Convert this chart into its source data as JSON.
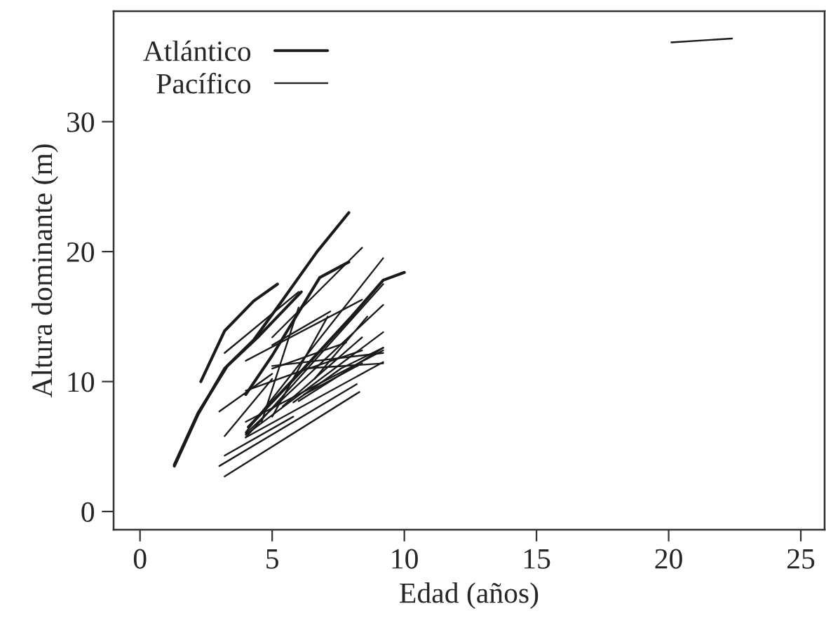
{
  "chart_data": {
    "type": "line",
    "xlabel": "Edad (años)",
    "ylabel": "Altura dominante (m)",
    "xlim": [
      -1.0,
      25.9
    ],
    "ylim": [
      -1.4,
      38.5
    ],
    "xticks": [
      0,
      5,
      10,
      15,
      20,
      25
    ],
    "yticks": [
      0,
      10,
      20,
      30
    ],
    "grid": false,
    "legend": "top left",
    "marker": "none",
    "line_style": "solid",
    "series": [
      {
        "name": "Atlántico",
        "color": "#1a1a1a",
        "x": [
          1.3,
          2.2,
          3.2,
          4.3,
          5.3,
          6.7,
          7.9
        ],
        "values": [
          3.5,
          7.5,
          11.0,
          13.2,
          16.0,
          20.0,
          23.0
        ]
      },
      {
        "color": "#1a1a1a",
        "x": [
          2.3,
          3.2,
          4.3,
          5.2
        ],
        "values": [
          10.0,
          13.9,
          16.2,
          17.5
        ]
      },
      {
        "color": "#1a1a1a",
        "x": [
          1.3,
          2.2,
          3.3,
          4.5,
          6.1
        ],
        "values": [
          3.6,
          7.6,
          11.2,
          13.5,
          16.9
        ]
      },
      {
        "color": "#1a1a1a",
        "x": [
          4.0,
          5.0,
          6.8,
          7.9
        ],
        "values": [
          9.0,
          12.0,
          18.0,
          19.2
        ]
      },
      {
        "color": "#1a1a1a",
        "x": [
          4.1,
          6.1,
          8.0,
          9.2,
          10.0
        ],
        "values": [
          6.5,
          10.8,
          15.0,
          17.8,
          18.4
        ]
      },
      {
        "name": "Pacífico",
        "color": "#1a1a1a",
        "x": [
          20.1,
          22.4
        ],
        "values": [
          36.1,
          36.4
        ]
      },
      {
        "color": "#1a1a1a",
        "x": [
          3.0,
          5.0
        ],
        "values": [
          7.7,
          10.6
        ]
      },
      {
        "color": "#1a1a1a",
        "x": [
          3.2,
          6.0
        ],
        "values": [
          12.2,
          16.9
        ]
      },
      {
        "color": "#1a1a1a",
        "x": [
          4.0,
          8.4
        ],
        "values": [
          11.6,
          16.3
        ]
      },
      {
        "color": "#1a1a1a",
        "x": [
          5.0,
          7.2
        ],
        "values": [
          12.8,
          15.4
        ]
      },
      {
        "color": "#1a1a1a",
        "x": [
          5.0,
          8.4
        ],
        "values": [
          13.4,
          20.3
        ]
      },
      {
        "color": "#1a1a1a",
        "x": [
          4.0,
          9.2
        ],
        "values": [
          6.1,
          19.5
        ]
      },
      {
        "color": "#1a1a1a",
        "x": [
          4.0,
          9.2
        ],
        "values": [
          5.7,
          17.5
        ]
      },
      {
        "color": "#1a1a1a",
        "x": [
          4.0,
          9.2
        ],
        "values": [
          6.0,
          15.9
        ]
      },
      {
        "color": "#1a1a1a",
        "x": [
          4.0,
          9.2
        ],
        "values": [
          5.9,
          13.8
        ]
      },
      {
        "color": "#1a1a1a",
        "x": [
          4.0,
          9.2
        ],
        "values": [
          6.9,
          12.4
        ]
      },
      {
        "color": "#1a1a1a",
        "x": [
          4.0,
          9.2
        ],
        "values": [
          5.7,
          11.5
        ]
      },
      {
        "color": "#1a1a1a",
        "x": [
          3.0,
          8.2
        ],
        "values": [
          3.5,
          9.8
        ]
      },
      {
        "color": "#1a1a1a",
        "x": [
          3.2,
          8.3
        ],
        "values": [
          2.7,
          9.2
        ]
      },
      {
        "color": "#1a1a1a",
        "x": [
          3.2,
          5.8
        ],
        "values": [
          4.3,
          7.3
        ]
      },
      {
        "color": "#1a1a1a",
        "x": [
          3.2,
          5.0
        ],
        "values": [
          5.8,
          10.2
        ]
      },
      {
        "color": "#1a1a1a",
        "x": [
          4.0,
          5.8,
          8.4
        ],
        "values": [
          9.3,
          10.6,
          12.4
        ]
      },
      {
        "color": "#1a1a1a",
        "x": [
          4.6,
          6.0
        ],
        "values": [
          6.9,
          15.7
        ]
      },
      {
        "color": "#1a1a1a",
        "x": [
          5.0,
          7.1
        ],
        "values": [
          7.3,
          15.0
        ]
      },
      {
        "color": "#1a1a1a",
        "x": [
          6.0,
          9.2
        ],
        "values": [
          8.5,
          12.6
        ]
      },
      {
        "color": "#1a1a1a",
        "x": [
          6.2,
          8.4
        ],
        "values": [
          9.0,
          11.4
        ]
      },
      {
        "color": "#1a1a1a",
        "x": [
          5.0,
          7.8
        ],
        "values": [
          11.0,
          13.0
        ]
      },
      {
        "color": "#1a1a1a",
        "x": [
          6.2,
          9.2
        ],
        "values": [
          11.0,
          11.4
        ]
      },
      {
        "color": "#1a1a1a",
        "x": [
          5.0,
          9.2
        ],
        "values": [
          11.2,
          12.2
        ]
      },
      {
        "color": "#1a1a1a",
        "x": [
          5.4,
          8.4
        ],
        "values": [
          8.1,
          13.4
        ]
      },
      {
        "color": "#1a1a1a",
        "x": [
          6.6,
          8.6
        ],
        "values": [
          10.2,
          15.0
        ]
      },
      {
        "color": "#1a1a1a",
        "x": [
          5.8,
          7.6,
          9.2
        ],
        "values": [
          8.4,
          11.0,
          12.6
        ]
      }
    ]
  }
}
